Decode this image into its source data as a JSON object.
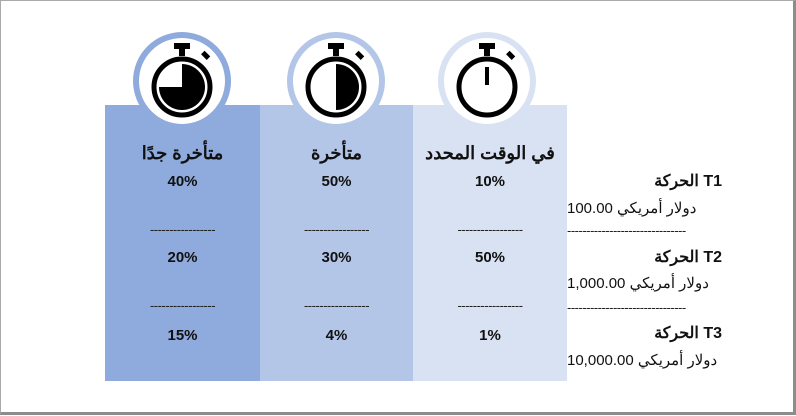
{
  "columns": [
    {
      "title": "متأخرة جدًا",
      "values": [
        "40%",
        "20%",
        "15%"
      ]
    },
    {
      "title": "متأخرة",
      "values": [
        "50%",
        "30%",
        "4%"
      ]
    },
    {
      "title": "في الوقت المحدد",
      "values": [
        "10%",
        "50%",
        "1%"
      ]
    }
  ],
  "separator": "-----------------",
  "side_separator": "-------------------------------",
  "transactions": [
    {
      "label": "الحركة T1",
      "amount": "100.00 دولار أمريكي"
    },
    {
      "label": "الحركة T2",
      "amount": "1,000.00 دولار أمريكي"
    },
    {
      "label": "الحركة T3",
      "amount": "10,000.00 دولار أمريكي"
    }
  ],
  "colors": {
    "very_late": "#8faadc",
    "late": "#b4c6e7",
    "on_time": "#d9e2f3"
  },
  "icons": [
    "stopwatch-three-quarters-icon",
    "stopwatch-half-icon",
    "stopwatch-empty-icon"
  ]
}
